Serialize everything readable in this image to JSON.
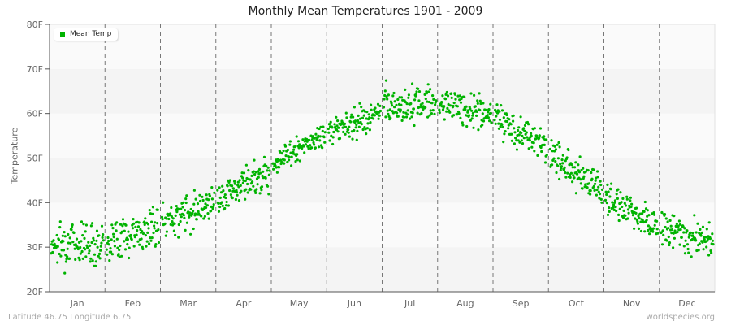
{
  "title": "Monthly Mean Temperatures 1901 - 2009",
  "footer": {
    "left": "Latitude 46.75 Longitude 6.75",
    "right": "worldspecies.org"
  },
  "legend": {
    "label": "Mean Temp",
    "color": "#00b300"
  },
  "chart_data": {
    "type": "scatter",
    "title": "Monthly Mean Temperatures 1901 - 2009",
    "xlabel": "",
    "ylabel": "Temperature",
    "ylim": [
      20,
      80
    ],
    "yticks": [
      "20F",
      "30F",
      "40F",
      "50F",
      "60F",
      "70F",
      "80F"
    ],
    "categories": [
      "Jan",
      "Feb",
      "Mar",
      "Apr",
      "May",
      "Jun",
      "Jul",
      "Aug",
      "Sep",
      "Oct",
      "Nov",
      "Dec"
    ],
    "legend": [
      "Mean Temp"
    ],
    "grid": "alternating horizontal bands, dashed vertical month dividers",
    "series": [
      {
        "name": "Mean Temp",
        "color": "#00b300",
        "month_ranges": [
          {
            "month": "Jan",
            "min": 21,
            "max": 38,
            "center": 31
          },
          {
            "month": "Feb",
            "min": 22,
            "max": 39,
            "center": 33
          },
          {
            "month": "Mar",
            "min": 32,
            "max": 45,
            "center": 38
          },
          {
            "month": "Apr",
            "min": 38,
            "max": 51,
            "center": 44
          },
          {
            "month": "May",
            "min": 46,
            "max": 57,
            "center": 52
          },
          {
            "month": "Jun",
            "min": 52,
            "max": 64,
            "center": 58
          },
          {
            "month": "Jul",
            "min": 56,
            "max": 70,
            "center": 62
          },
          {
            "month": "Aug",
            "min": 55,
            "max": 68,
            "center": 61
          },
          {
            "month": "Sep",
            "min": 49,
            "max": 62,
            "center": 56
          },
          {
            "month": "Oct",
            "min": 40,
            "max": 55,
            "center": 47
          },
          {
            "month": "Nov",
            "min": 33,
            "max": 45,
            "center": 38
          },
          {
            "month": "Dec",
            "min": 24,
            "max": 39,
            "center": 33
          }
        ]
      }
    ]
  }
}
